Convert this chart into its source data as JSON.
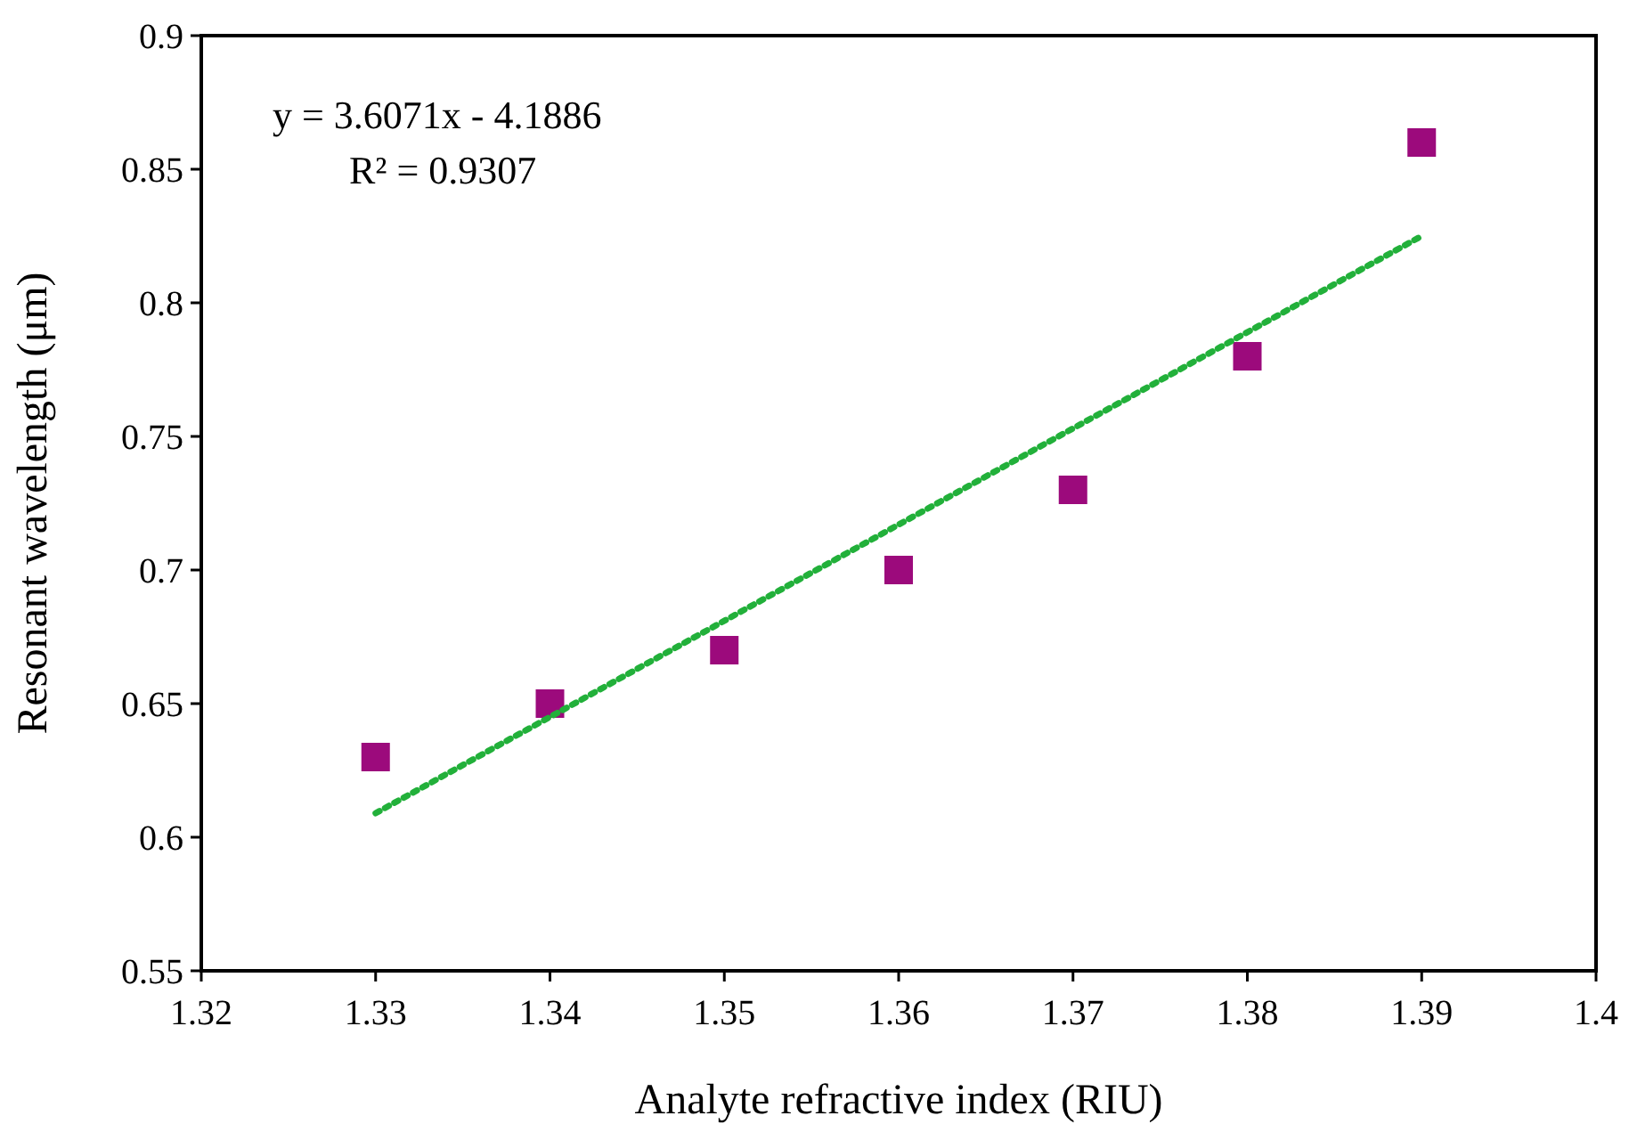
{
  "chart_data": {
    "type": "scatter",
    "xlabel": "Analyte refractive index (RIU)",
    "ylabel": "Resonant wavelength (μm)",
    "x": [
      1.33,
      1.34,
      1.35,
      1.36,
      1.37,
      1.38,
      1.39
    ],
    "series": [
      {
        "color": "#9c0a7c",
        "marker": "square",
        "values": [
          0.63,
          0.65,
          0.67,
          0.7,
          0.73,
          0.78,
          0.86
        ]
      },
      {
        "type": "line",
        "color": "#22b03a",
        "line_style": "dotted",
        "marker": "none",
        "x": [
          1.33,
          1.39
        ],
        "values": [
          0.609,
          0.825
        ]
      }
    ],
    "xlim": [
      1.32,
      1.4
    ],
    "xticks": [
      1.32,
      1.33,
      1.34,
      1.35,
      1.36,
      1.37,
      1.38,
      1.39,
      {
        "value": 1.4,
        "label": "1.4"
      }
    ],
    "ylim": [
      0.55,
      0.9
    ],
    "yticks": [
      0.55,
      {
        "value": 0.6,
        "label": "0.6"
      },
      0.65,
      {
        "value": 0.7,
        "label": "0.7"
      },
      0.75,
      {
        "value": 0.8,
        "label": "0.8"
      },
      0.85,
      {
        "value": 0.9,
        "label": "0.9"
      }
    ],
    "grid": false,
    "annotations": [
      "y = 3.6071x - 4.1886",
      "R² = 0.9307"
    ]
  }
}
